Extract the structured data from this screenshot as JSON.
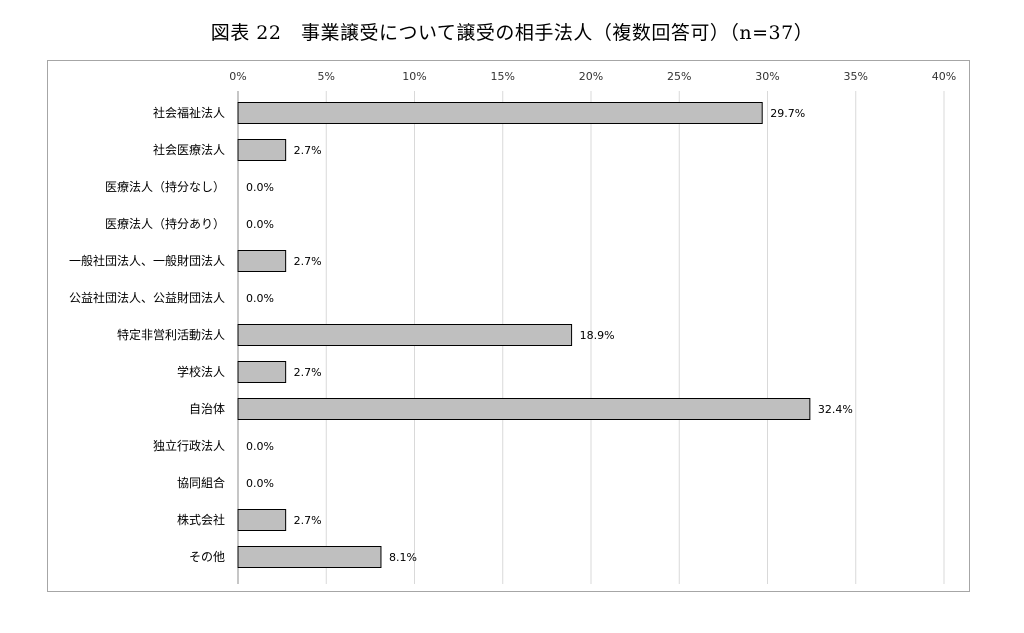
{
  "title": "図表 22　事業譲受について譲受の相手法人（複数回答可）（n=37）",
  "chart_data": {
    "type": "bar",
    "orientation": "horizontal",
    "title": "図表 22　事業譲受について譲受の相手法人（複数回答可）（n=37）",
    "categories": [
      "社会福祉法人",
      "社会医療法人",
      "医療法人（持分なし）",
      "医療法人（持分あり）",
      "一般社団法人、一般財団法人",
      "公益社団法人、公益財団法人",
      "特定非営利活動法人",
      "学校法人",
      "自治体",
      "独立行政法人",
      "協同組合",
      "株式会社",
      "その他"
    ],
    "values": [
      29.7,
      2.7,
      0.0,
      0.0,
      2.7,
      0.0,
      18.9,
      2.7,
      32.4,
      0.0,
      0.0,
      2.7,
      8.1
    ],
    "value_labels": [
      "29.7%",
      "2.7%",
      "0.0%",
      "0.0%",
      "2.7%",
      "0.0%",
      "18.9%",
      "2.7%",
      "32.4%",
      "0.0%",
      "0.0%",
      "2.7%",
      "8.1%"
    ],
    "xlim": [
      0,
      40
    ],
    "xticks": [
      0,
      5,
      10,
      15,
      20,
      25,
      30,
      35,
      40
    ],
    "xtick_labels": [
      "0%",
      "5%",
      "10%",
      "15%",
      "20%",
      "25%",
      "30%",
      "35%",
      "40%"
    ],
    "x_axis_position": "top",
    "grid": true,
    "bar_color": "#bfbfbf",
    "bar_edge_color": "#000000",
    "grid_color": "#d9d9d9"
  }
}
